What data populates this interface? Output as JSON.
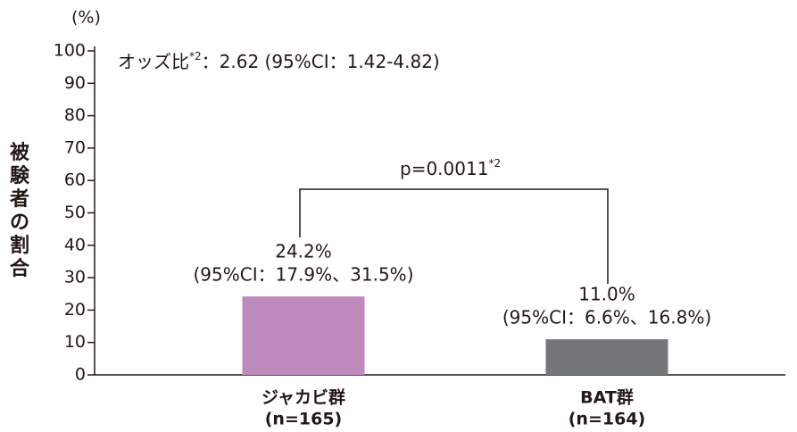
{
  "chart_data": {
    "type": "bar",
    "unit_label": "(%)",
    "y_axis_label": "被験者の割合",
    "categories": [
      "ジャカビ群",
      "BAT群"
    ],
    "n_labels": [
      "(n=165)",
      "(n=164)"
    ],
    "values": [
      24.2,
      11.0
    ],
    "value_labels": [
      "24.2%",
      "11.0%"
    ],
    "ci_labels": [
      "(95%CI：17.9%、31.5%)",
      "(95%CI：6.6%、16.8%)"
    ],
    "colors": [
      "#bf8bbd",
      "#75787b"
    ],
    "ylim": [
      0,
      100
    ],
    "yticks": [
      0,
      10,
      20,
      30,
      40,
      50,
      60,
      70,
      80,
      90,
      100
    ],
    "odds_annotation": {
      "text": "オッズ比",
      "sup": "*2",
      "rest": "：2.62 (95%CI：1.42-4.82)"
    },
    "p_annotation": {
      "text": "p=0.0011",
      "sup": "*2"
    }
  }
}
